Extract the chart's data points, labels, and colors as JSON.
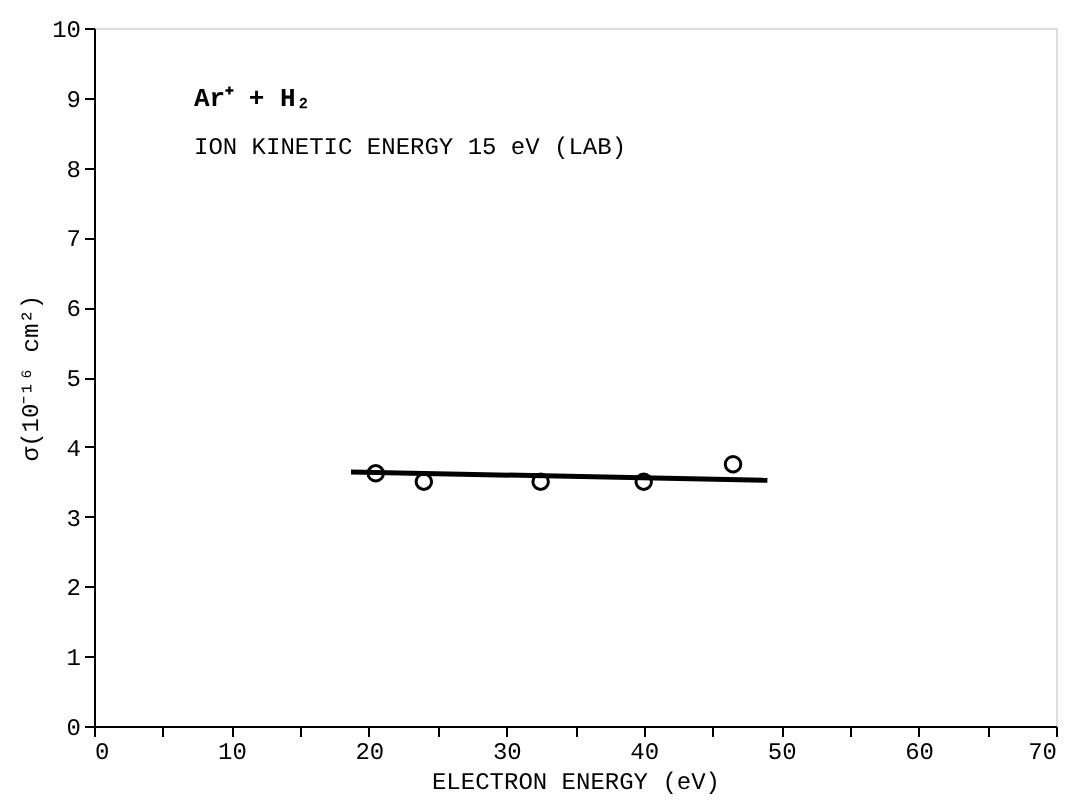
{
  "chart_data": {
    "type": "scatter",
    "xlabel": "ELECTRON ENERGY (eV)",
    "ylabel": "σ(10⁻¹⁶ cm²)",
    "annotations": [
      "Ar⁺ + H₂",
      "ION KINETIC ENERGY 15 eV (LAB)"
    ],
    "xlim": [
      0,
      70
    ],
    "xticks": [
      0,
      {
        "value": 5,
        "label": null
      },
      10,
      {
        "value": 15,
        "label": null
      },
      20,
      {
        "value": 25,
        "label": null
      },
      30,
      {
        "value": 35,
        "label": null
      },
      40,
      {
        "value": 45,
        "label": null
      },
      50,
      {
        "value": 55,
        "label": null
      },
      60,
      {
        "value": 65,
        "label": null
      },
      70
    ],
    "ylim": [
      0,
      10
    ],
    "yticks": [
      0,
      1,
      2,
      3,
      4,
      5,
      6,
      7,
      8,
      9,
      10
    ],
    "grid": false,
    "series": [
      {
        "marker": "circle",
        "color": "#000000",
        "x": [
          20.5,
          24,
          32.5,
          40,
          46.5
        ],
        "values": [
          3.62,
          3.5,
          3.5,
          3.5,
          3.75
        ]
      },
      {
        "type": "line",
        "line_style": "solid",
        "color": "#000000",
        "x": [
          18.7,
          49
        ],
        "values": [
          3.64,
          3.52
        ]
      }
    ]
  }
}
